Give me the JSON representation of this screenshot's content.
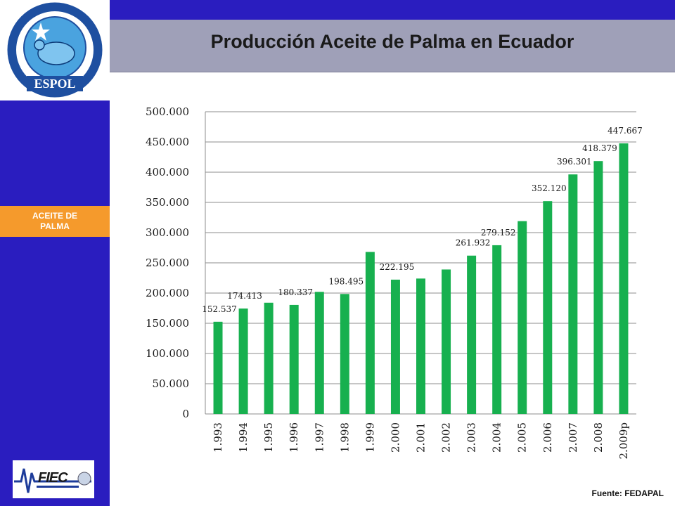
{
  "slide": {
    "title": "Producción Aceite de Palma en Ecuador",
    "side_tab": "ACEITE DE PALMA",
    "source": "Fuente:  FEDAPAL",
    "logo_text": "ESPOL",
    "fiec_text": "FIEC"
  },
  "colors": {
    "sidebar": "#2a1dbf",
    "tab": "#f59a2c",
    "bar": "#17b04f",
    "title_bar": "#9fa0b8"
  },
  "chart_data": {
    "type": "bar",
    "title": "",
    "xlabel": "",
    "ylabel": "",
    "ylim": [
      0,
      500000
    ],
    "grid": true,
    "y_ticks": [
      "0",
      "50.000",
      "100.000",
      "150.000",
      "200.000",
      "250.000",
      "300.000",
      "350.000",
      "400.000",
      "450.000",
      "500.000"
    ],
    "categories": [
      "1.993",
      "1.994",
      "1.995",
      "1.996",
      "1.997",
      "1.998",
      "1.999",
      "2.000",
      "2.001",
      "2.002",
      "2.003",
      "2.004",
      "2.005",
      "2.006",
      "2.007",
      "2.008",
      "2.009p"
    ],
    "values": [
      152537,
      174413,
      184000,
      180337,
      202000,
      198495,
      268000,
      222195,
      224000,
      239000,
      261932,
      279152,
      319000,
      352120,
      396301,
      418379,
      447667
    ],
    "data_labels": [
      "152.537",
      "174.413",
      "",
      "180.337",
      "",
      "198.495",
      "",
      "222.195",
      "",
      "",
      "261.932",
      "279.152",
      "",
      "352.120",
      "396.301",
      "418.379",
      "447.667"
    ]
  }
}
